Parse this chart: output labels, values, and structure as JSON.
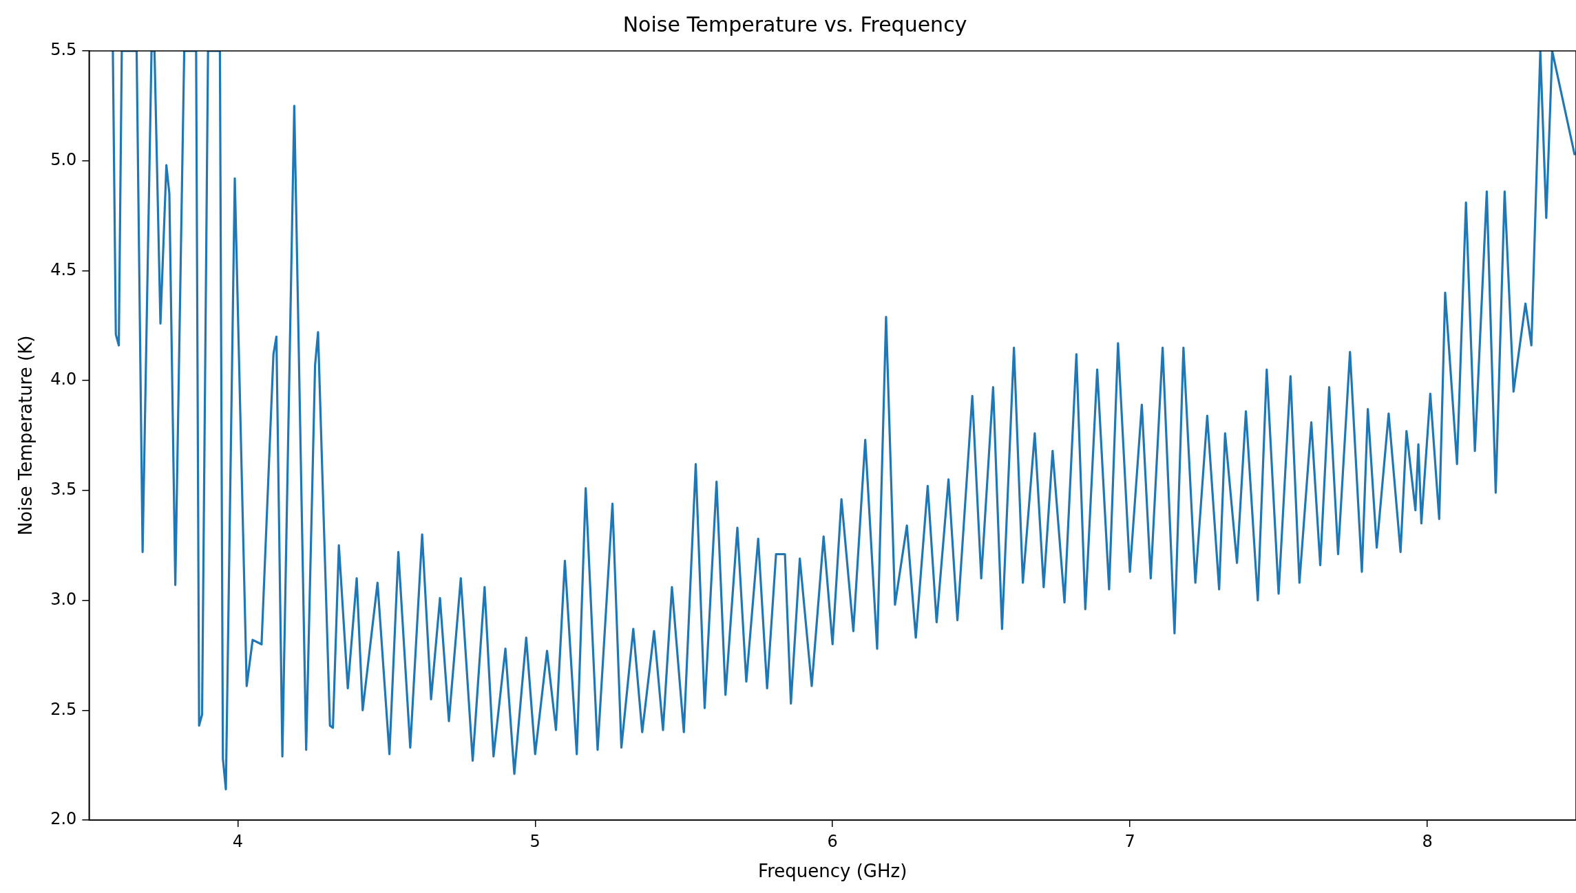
{
  "chart_data": {
    "type": "line",
    "title": "Noise Temperature vs. Frequency",
    "xlabel": "Frequency (GHz)",
    "ylabel": "Noise Temperature (K)",
    "xlim": [
      3.5,
      8.5
    ],
    "ylim": [
      2.0,
      5.5
    ],
    "xticks": [
      4,
      5,
      6,
      7,
      8
    ],
    "yticks": [
      {
        "value": 2.0,
        "label": "2.0"
      },
      {
        "value": 2.5,
        "label": "2.5"
      },
      {
        "value": 3.0,
        "label": "3.0"
      },
      {
        "value": 3.5,
        "label": "3.5"
      },
      {
        "value": 4.0,
        "label": "4.0"
      },
      {
        "value": 4.5,
        "label": "4.5"
      },
      {
        "value": 5.0,
        "label": "5.0"
      },
      {
        "value": 5.5,
        "label": "5.5"
      }
    ],
    "grid": false,
    "legend": false,
    "marker": "none",
    "line_style": "solid",
    "x": [
      3.58,
      3.59,
      3.6,
      3.61,
      3.66,
      3.68,
      3.71,
      3.72,
      3.74,
      3.76,
      3.77,
      3.79,
      3.82,
      3.86,
      3.87,
      3.88,
      3.9,
      3.94,
      3.95,
      3.96,
      3.99,
      4.03,
      4.05,
      4.08,
      4.12,
      4.13,
      4.15,
      4.19,
      4.23,
      4.26,
      4.27,
      4.31,
      4.32,
      4.34,
      4.37,
      4.4,
      4.42,
      4.47,
      4.51,
      4.54,
      4.58,
      4.62,
      4.65,
      4.68,
      4.71,
      4.75,
      4.79,
      4.83,
      4.86,
      4.9,
      4.93,
      4.97,
      5.0,
      5.04,
      5.07,
      5.1,
      5.14,
      5.17,
      5.21,
      5.26,
      5.29,
      5.33,
      5.36,
      5.4,
      5.43,
      5.46,
      5.5,
      5.54,
      5.57,
      5.61,
      5.64,
      5.68,
      5.71,
      5.75,
      5.78,
      5.81,
      5.84,
      5.86,
      5.89,
      5.93,
      5.97,
      6.0,
      6.03,
      6.07,
      6.11,
      6.15,
      6.18,
      6.21,
      6.25,
      6.28,
      6.32,
      6.35,
      6.39,
      6.42,
      6.47,
      6.5,
      6.54,
      6.57,
      6.61,
      6.64,
      6.68,
      6.71,
      6.74,
      6.78,
      6.82,
      6.85,
      6.89,
      6.93,
      6.96,
      7.0,
      7.04,
      7.07,
      7.11,
      7.15,
      7.18,
      7.22,
      7.26,
      7.3,
      7.32,
      7.36,
      7.39,
      7.43,
      7.46,
      7.5,
      7.54,
      7.57,
      7.61,
      7.64,
      7.67,
      7.7,
      7.74,
      7.78,
      7.8,
      7.83,
      7.87,
      7.91,
      7.93,
      7.96,
      7.97,
      7.98,
      8.01,
      8.04,
      8.06,
      8.1,
      8.13,
      8.16,
      8.2,
      8.23,
      8.26,
      8.29,
      8.33,
      8.35,
      8.38,
      8.4,
      8.42,
      8.495
    ],
    "series": [
      {
        "color": "#1f77b4",
        "values": [
          5.5,
          4.21,
          4.16,
          5.5,
          5.5,
          3.22,
          5.5,
          5.5,
          4.26,
          4.98,
          4.85,
          3.07,
          5.5,
          5.5,
          2.43,
          2.48,
          5.5,
          5.5,
          2.28,
          2.14,
          4.92,
          2.61,
          2.82,
          2.8,
          4.12,
          4.2,
          2.29,
          5.25,
          2.32,
          4.07,
          4.22,
          2.43,
          2.42,
          3.25,
          2.6,
          3.1,
          2.5,
          3.08,
          2.3,
          3.22,
          2.33,
          3.3,
          2.55,
          3.01,
          2.45,
          3.1,
          2.27,
          3.06,
          2.29,
          2.78,
          2.21,
          2.83,
          2.3,
          2.77,
          2.41,
          3.18,
          2.3,
          3.51,
          2.32,
          3.44,
          2.33,
          2.87,
          2.4,
          2.86,
          2.41,
          3.06,
          2.4,
          3.62,
          2.51,
          3.54,
          2.57,
          3.33,
          2.63,
          3.28,
          2.6,
          3.21,
          3.21,
          2.53,
          3.19,
          2.61,
          3.29,
          2.8,
          3.46,
          2.86,
          3.73,
          2.78,
          4.29,
          2.98,
          3.34,
          2.83,
          3.52,
          2.9,
          3.55,
          2.91,
          3.93,
          3.1,
          3.97,
          2.87,
          4.15,
          3.08,
          3.76,
          3.06,
          3.68,
          2.99,
          4.12,
          2.96,
          4.05,
          3.05,
          4.17,
          3.13,
          3.89,
          3.1,
          4.15,
          2.85,
          4.15,
          3.08,
          3.84,
          3.05,
          3.76,
          3.17,
          3.86,
          3.0,
          4.05,
          3.03,
          4.02,
          3.08,
          3.81,
          3.16,
          3.97,
          3.21,
          4.13,
          3.13,
          3.87,
          3.24,
          3.85,
          3.22,
          3.77,
          3.41,
          3.71,
          3.35,
          3.94,
          3.37,
          4.4,
          3.62,
          4.81,
          3.68,
          4.86,
          3.49,
          4.86,
          3.95,
          4.35,
          4.16,
          5.5,
          4.74,
          5.5,
          5.03
        ]
      }
    ]
  }
}
